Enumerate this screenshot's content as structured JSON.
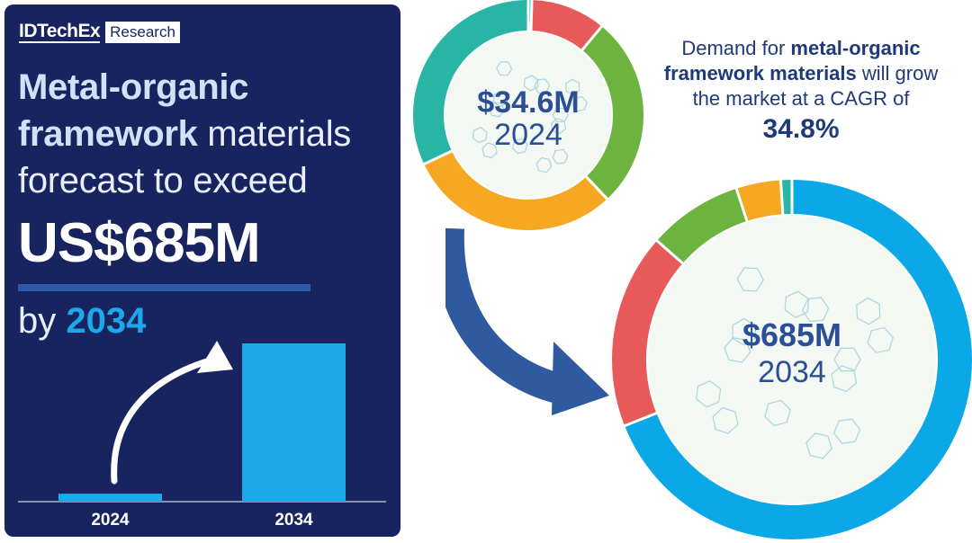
{
  "brand": {
    "name": "IDTechEx",
    "tag": "Research"
  },
  "headline": {
    "part1_bold": "Metal-organic",
    "part2_bold": "framework",
    "part2_rest": " materials",
    "part3": "forecast to exceed",
    "big_value": "US$685M",
    "by_prefix": "by ",
    "by_year": "2034"
  },
  "summary": {
    "prefix": "Demand for ",
    "bold": "metal-organic framework materials",
    "suffix": " will grow the market at a CAGR of",
    "cagr": "34.8%"
  },
  "colors": {
    "panel": "#17245f",
    "accent_blue": "#1ca8ea",
    "navy_text": "#1f3a7a",
    "arrow": "#2f5aa0"
  },
  "chart_data": [
    {
      "type": "bar",
      "categories": [
        "2024",
        "2034"
      ],
      "values": [
        34.6,
        685
      ],
      "title": "",
      "xlabel": "",
      "ylabel": "",
      "ylim": [
        0,
        685
      ],
      "color": "#1ca8ea"
    },
    {
      "type": "pie",
      "title": "",
      "value_label": "$34.6M",
      "year_label": "2024",
      "total": 34.6,
      "slices": [
        {
          "share": 0.005,
          "color": "#1ca8ea"
        },
        {
          "share": 0.105,
          "color": "#e85a5a"
        },
        {
          "share": 0.27,
          "color": "#6cb33f"
        },
        {
          "share": 0.3,
          "color": "#f7a823"
        },
        {
          "share": 0.32,
          "color": "#29b5a6"
        }
      ]
    },
    {
      "type": "pie",
      "title": "",
      "value_label": "$685M",
      "year_label": "2034",
      "total": 685,
      "slices": [
        {
          "share": 0.69,
          "color": "#0aa8e6"
        },
        {
          "share": 0.175,
          "color": "#e85a5a"
        },
        {
          "share": 0.085,
          "color": "#6cb33f"
        },
        {
          "share": 0.04,
          "color": "#f7a823"
        },
        {
          "share": 0.01,
          "color": "#29b5a6"
        }
      ]
    }
  ]
}
